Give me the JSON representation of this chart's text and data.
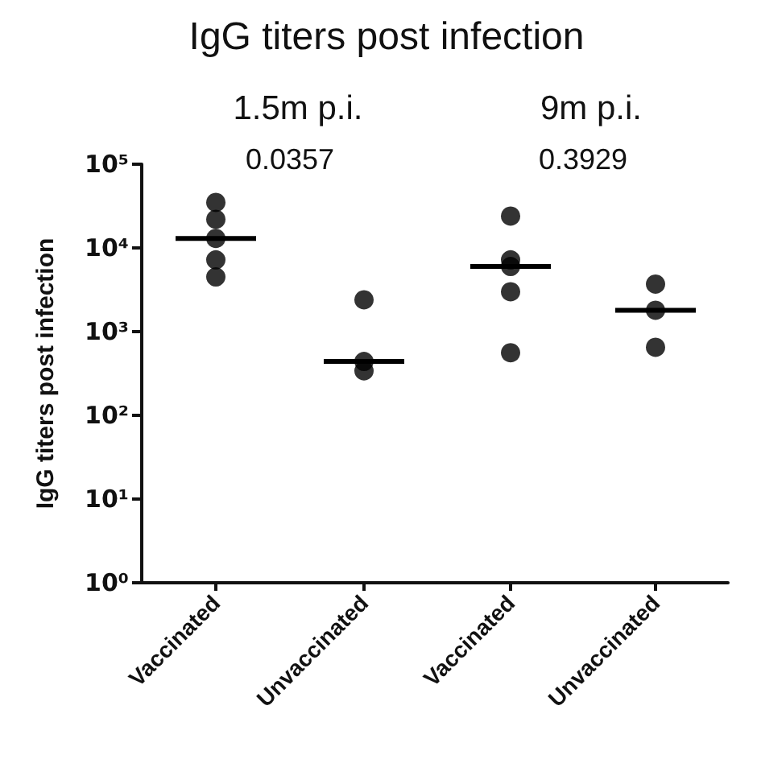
{
  "chart_data": [
    {
      "type": "scatter",
      "title": "IgG titers post infection",
      "subtitle": "1.5m p.i.",
      "ylabel": "IgG titers post infection",
      "categories": [
        "Vaccinated",
        "Unvaccinated"
      ],
      "series": [
        {
          "type": "scatter",
          "color": "#000000",
          "marker": "circle",
          "x": [
            "Vaccinated",
            "Vaccinated",
            "Vaccinated",
            "Vaccinated",
            "Vaccinated",
            "Unvaccinated",
            "Unvaccinated",
            "Unvaccinated"
          ],
          "values": [
            35000,
            22000,
            13000,
            7200,
            4500,
            2400,
            340,
            440
          ]
        },
        {
          "type": "box",
          "color": "#000000",
          "boxes": [
            {
              "low": 13000,
              "q1": 13000,
              "median": 13000,
              "q3": 13000,
              "high": 13000
            },
            {
              "low": 440,
              "q1": 440,
              "median": 440,
              "q3": 440,
              "high": 440
            }
          ]
        }
      ],
      "log": "y",
      "ylim": [
        1,
        100000
      ],
      "yticks": [
        {
          "value": 1,
          "label": "10⁰"
        },
        {
          "value": 10,
          "label": "10¹"
        },
        {
          "value": 100,
          "label": "10²"
        },
        {
          "value": 1000,
          "label": "10³"
        },
        {
          "value": 10000,
          "label": "10⁴"
        },
        {
          "value": 100000,
          "label": "10⁵"
        }
      ],
      "grid": false,
      "annotations": [
        "0.0357"
      ]
    },
    {
      "type": "scatter",
      "subtitle": "9m p.i.",
      "categories": [
        "Vaccinated",
        "Unvaccinated"
      ],
      "series": [
        {
          "type": "scatter",
          "color": "#000000",
          "marker": "circle",
          "x": [
            "Vaccinated",
            "Vaccinated",
            "Vaccinated",
            "Vaccinated",
            "Vaccinated",
            "Unvaccinated",
            "Unvaccinated",
            "Unvaccinated"
          ],
          "values": [
            24000,
            6000,
            7200,
            3000,
            560,
            3700,
            1800,
            650
          ]
        },
        {
          "type": "box",
          "color": "#000000",
          "boxes": [
            {
              "low": 6000,
              "q1": 6000,
              "median": 6000,
              "q3": 6000,
              "high": 6000
            },
            {
              "low": 1800,
              "q1": 1800,
              "median": 1800,
              "q3": 1800,
              "high": 1800
            }
          ]
        }
      ],
      "log": "y",
      "ylim": [
        1,
        100000
      ],
      "grid": false,
      "tick_labels": "x",
      "annotations": [
        "0.3929"
      ]
    }
  ]
}
